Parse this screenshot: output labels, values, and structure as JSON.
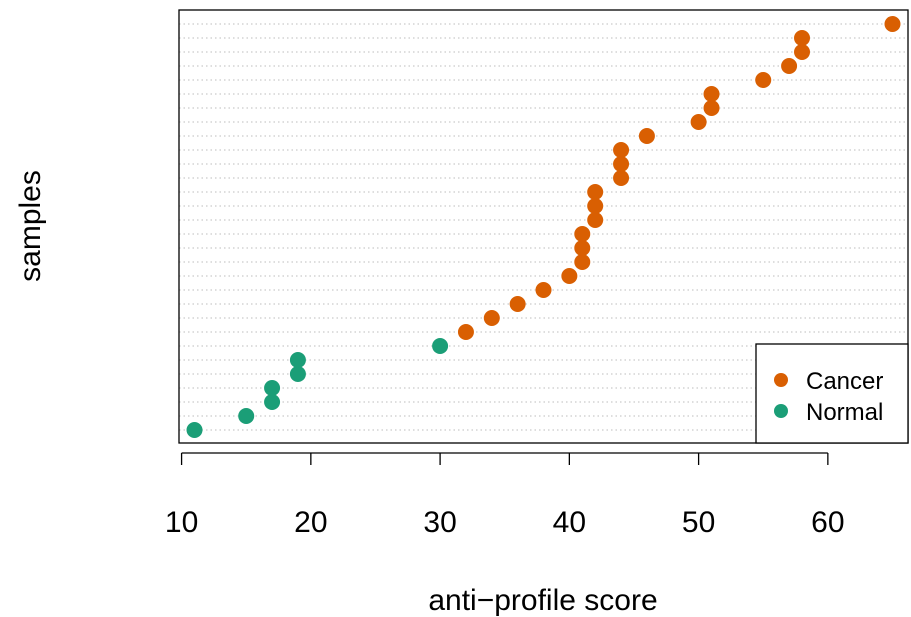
{
  "chart_data": {
    "type": "scatter",
    "title": "",
    "xlabel": "anti−profile score",
    "ylabel": "samples",
    "xlim": [
      9.8,
      66.2
    ],
    "xticks": [
      10,
      20,
      30,
      40,
      50,
      60
    ],
    "grid": "dotted horizontal line per sample",
    "legend_position": "bottom-right",
    "colors": {
      "Cancer": "#D95F02",
      "Normal": "#1B9E77"
    },
    "series": [
      {
        "name": "Cancer",
        "color": "#D95F02",
        "points": [
          {
            "x": 32,
            "y": 8
          },
          {
            "x": 34,
            "y": 9
          },
          {
            "x": 36,
            "y": 10
          },
          {
            "x": 38,
            "y": 11
          },
          {
            "x": 40,
            "y": 12
          },
          {
            "x": 41,
            "y": 13
          },
          {
            "x": 41,
            "y": 14
          },
          {
            "x": 41,
            "y": 15
          },
          {
            "x": 42,
            "y": 16
          },
          {
            "x": 42,
            "y": 17
          },
          {
            "x": 42,
            "y": 18
          },
          {
            "x": 44,
            "y": 19
          },
          {
            "x": 44,
            "y": 20
          },
          {
            "x": 44,
            "y": 21
          },
          {
            "x": 46,
            "y": 22
          },
          {
            "x": 50,
            "y": 23
          },
          {
            "x": 51,
            "y": 24
          },
          {
            "x": 51,
            "y": 25
          },
          {
            "x": 55,
            "y": 26
          },
          {
            "x": 57,
            "y": 27
          },
          {
            "x": 58,
            "y": 28
          },
          {
            "x": 58,
            "y": 29
          },
          {
            "x": 65,
            "y": 30
          }
        ]
      },
      {
        "name": "Normal",
        "color": "#1B9E77",
        "points": [
          {
            "x": 11,
            "y": 1
          },
          {
            "x": 15,
            "y": 2
          },
          {
            "x": 17,
            "y": 3
          },
          {
            "x": 17,
            "y": 4
          },
          {
            "x": 19,
            "y": 5
          },
          {
            "x": 19,
            "y": 6
          },
          {
            "x": 30,
            "y": 7
          }
        ]
      }
    ]
  }
}
